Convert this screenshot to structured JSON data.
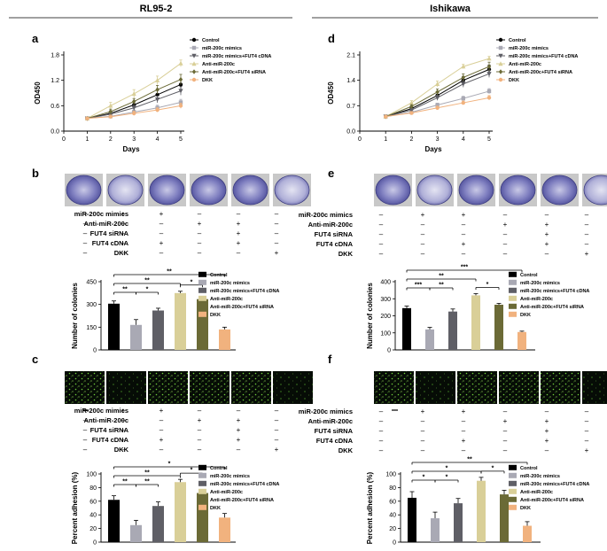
{
  "colors": {
    "Control": "#000000",
    "miR-200c mimics": "#a9a9b4",
    "miR-200c mimics+FUT4 cDNA": "#5f5f66",
    "Anti-miR-200c": "#d9cf98",
    "Anti-miR-200c+FUT4 siRNA": "#6b6a36",
    "DKK": "#f1b27e"
  },
  "treatment_labels": [
    "miR-200c mimics",
    "Anti-miR-200c",
    "FUT4 siRNA",
    "FUT4 cDNA",
    "DKK"
  ],
  "treatment_matrix": [
    [
      "–",
      "+",
      "+",
      "–",
      "–",
      "–"
    ],
    [
      "–",
      "–",
      "–",
      "+",
      "+",
      "–"
    ],
    [
      "–",
      "–",
      "–",
      "–",
      "+",
      "–"
    ],
    [
      "–",
      "–",
      "+",
      "–",
      "+",
      "–"
    ],
    [
      "–",
      "–",
      "–",
      "–",
      "–",
      "+"
    ]
  ],
  "chart_data": [
    {
      "id": "a",
      "type": "line",
      "panel_letter": "a",
      "group_title": "RL95-2",
      "column": "left",
      "xlabel": "Days",
      "ylabel": "OD450",
      "x": [
        1,
        2,
        3,
        4,
        5
      ],
      "xticks": [
        "0",
        "1",
        "2",
        "3",
        "4",
        "5"
      ],
      "xlim": [
        0,
        5
      ],
      "yticks": [
        "0.0",
        "0.6",
        "1.2",
        "1.8"
      ],
      "ylim": [
        0,
        1.8
      ],
      "series": [
        {
          "name": "Control",
          "marker": "circle",
          "values": [
            0.3,
            0.42,
            0.62,
            0.86,
            1.1
          ],
          "err": [
            0.02,
            0.06,
            0.08,
            0.1,
            0.12
          ]
        },
        {
          "name": "miR-200c mimics",
          "marker": "square",
          "values": [
            0.3,
            0.35,
            0.45,
            0.55,
            0.68
          ],
          "err": [
            0.02,
            0.04,
            0.05,
            0.06,
            0.07
          ]
        },
        {
          "name": "miR-200c mimics+FUT4 cDNA",
          "marker": "triangle-down",
          "values": [
            0.3,
            0.4,
            0.55,
            0.75,
            0.95
          ],
          "err": [
            0.02,
            0.05,
            0.06,
            0.08,
            0.1
          ]
        },
        {
          "name": "Anti-miR-200c",
          "marker": "triangle",
          "values": [
            0.3,
            0.6,
            0.88,
            1.2,
            1.6
          ],
          "err": [
            0.03,
            0.08,
            0.1,
            0.1,
            0.08
          ]
        },
        {
          "name": "Anti-miR-200c+FUT4 siRNA",
          "marker": "diamond",
          "values": [
            0.3,
            0.46,
            0.7,
            0.98,
            1.22
          ],
          "err": [
            0.02,
            0.06,
            0.07,
            0.1,
            0.12
          ]
        },
        {
          "name": "DKK",
          "marker": "circle",
          "values": [
            0.3,
            0.34,
            0.42,
            0.5,
            0.6
          ],
          "err": [
            0.02,
            0.04,
            0.05,
            0.05,
            0.06
          ]
        }
      ]
    },
    {
      "id": "d",
      "type": "line",
      "panel_letter": "d",
      "group_title": "Ishikawa",
      "column": "right",
      "xlabel": "Days",
      "ylabel": "OD450",
      "x": [
        1,
        2,
        3,
        4,
        5
      ],
      "xticks": [
        "0",
        "1",
        "2",
        "3",
        "4",
        "5"
      ],
      "xlim": [
        0,
        5
      ],
      "yticks": [
        "0.0",
        "0.7",
        "1.4",
        "2.1"
      ],
      "ylim": [
        0,
        2.1
      ],
      "series": [
        {
          "name": "Control",
          "marker": "circle",
          "values": [
            0.4,
            0.62,
            0.98,
            1.4,
            1.7
          ],
          "err": [
            0.03,
            0.05,
            0.08,
            0.1,
            0.12
          ]
        },
        {
          "name": "miR-200c mimics",
          "marker": "square",
          "values": [
            0.4,
            0.52,
            0.72,
            0.9,
            1.1
          ],
          "err": [
            0.03,
            0.04,
            0.05,
            0.06,
            0.07
          ]
        },
        {
          "name": "miR-200c mimics+FUT4 cDNA",
          "marker": "triangle-down",
          "values": [
            0.4,
            0.58,
            0.92,
            1.3,
            1.58
          ],
          "err": [
            0.03,
            0.05,
            0.07,
            0.09,
            0.1
          ]
        },
        {
          "name": "Anti-miR-200c",
          "marker": "triangle",
          "values": [
            0.4,
            0.78,
            1.3,
            1.78,
            2.0
          ],
          "err": [
            0.03,
            0.06,
            0.08,
            0.06,
            0.06
          ]
        },
        {
          "name": "Anti-miR-200c+FUT4 siRNA",
          "marker": "diamond",
          "values": [
            0.4,
            0.68,
            1.08,
            1.48,
            1.78
          ],
          "err": [
            0.03,
            0.05,
            0.08,
            0.1,
            0.12
          ]
        },
        {
          "name": "DKK",
          "marker": "circle",
          "values": [
            0.4,
            0.5,
            0.64,
            0.78,
            0.92
          ],
          "err": [
            0.03,
            0.04,
            0.05,
            0.05,
            0.06
          ]
        }
      ]
    },
    {
      "id": "b",
      "type": "bar",
      "panel_letter": "b",
      "column": "left",
      "ylabel": "Number of colonies",
      "yticks": [
        "0",
        "150",
        "300",
        "450"
      ],
      "ylim": [
        0,
        450
      ],
      "categories": [
        "Control",
        "miR-200c mimics",
        "miR-200c mimics+FUT4 cDNA",
        "Anti-miR-200c",
        "Anti-miR-200c+FUT4 siRNA",
        "DKK"
      ],
      "values": [
        305,
        165,
        260,
        375,
        335,
        135
      ],
      "err": [
        18,
        35,
        15,
        12,
        10,
        15
      ],
      "significance": [
        {
          "from": 0,
          "to": 1,
          "label": "**"
        },
        {
          "from": 1,
          "to": 2,
          "label": "*"
        },
        {
          "from": 0,
          "to": 3,
          "label": "**"
        },
        {
          "from": 3,
          "to": 4,
          "label": "*"
        },
        {
          "from": 0,
          "to": 5,
          "label": "**"
        }
      ]
    },
    {
      "id": "e",
      "type": "bar",
      "panel_letter": "e",
      "column": "right",
      "ylabel": "Number of colonies",
      "yticks": [
        "0",
        "100",
        "200",
        "300",
        "400"
      ],
      "ylim": [
        0,
        400
      ],
      "categories": [
        "Control",
        "miR-200c mimics",
        "miR-200c mimics+FUT4 cDNA",
        "Anti-miR-200c",
        "Anti-miR-200c+FUT4 siRNA",
        "DKK"
      ],
      "values": [
        245,
        120,
        225,
        320,
        265,
        105
      ],
      "err": [
        12,
        12,
        15,
        10,
        8,
        5
      ],
      "significance": [
        {
          "from": 0,
          "to": 1,
          "label": "***"
        },
        {
          "from": 1,
          "to": 2,
          "label": "**"
        },
        {
          "from": 0,
          "to": 3,
          "label": "**"
        },
        {
          "from": 3,
          "to": 4,
          "label": "*"
        },
        {
          "from": 0,
          "to": 5,
          "label": "***"
        }
      ]
    },
    {
      "id": "c",
      "type": "bar",
      "panel_letter": "c",
      "column": "left",
      "ylabel": "Percent adhesion (%)",
      "yticks": [
        "0",
        "20",
        "40",
        "60",
        "80",
        "100"
      ],
      "ylim": [
        0,
        100
      ],
      "categories": [
        "Control",
        "miR-200c mimics",
        "miR-200c mimics+FUT4 cDNA",
        "Anti-miR-200c",
        "Anti-miR-200c+FUT4 siRNA",
        "DKK"
      ],
      "values": [
        62,
        25,
        53,
        88,
        72,
        36
      ],
      "err": [
        6,
        7,
        6,
        4,
        5,
        6
      ],
      "significance": [
        {
          "from": 0,
          "to": 1,
          "label": "**"
        },
        {
          "from": 1,
          "to": 2,
          "label": "**"
        },
        {
          "from": 0,
          "to": 3,
          "label": "**"
        },
        {
          "from": 3,
          "to": 4,
          "label": "*"
        },
        {
          "from": 0,
          "to": 5,
          "label": "*"
        }
      ]
    },
    {
      "id": "f",
      "type": "bar",
      "panel_letter": "f",
      "column": "right",
      "ylabel": "Percent adhesion (%)",
      "yticks": [
        "0",
        "20",
        "40",
        "60",
        "80",
        "100"
      ],
      "ylim": [
        0,
        100
      ],
      "categories": [
        "Control",
        "miR-200c mimics",
        "miR-200c mimics+FUT4 cDNA",
        "Anti-miR-200c",
        "Anti-miR-200c+FUT4 siRNA",
        "DKK"
      ],
      "values": [
        65,
        35,
        57,
        90,
        70,
        24
      ],
      "err": [
        9,
        9,
        7,
        5,
        6,
        6
      ],
      "significance": [
        {
          "from": 0,
          "to": 1,
          "label": "*"
        },
        {
          "from": 1,
          "to": 2,
          "label": "*"
        },
        {
          "from": 0,
          "to": 3,
          "label": "*"
        },
        {
          "from": 3,
          "to": 4,
          "label": "*"
        },
        {
          "from": 0,
          "to": 5,
          "label": "**"
        }
      ]
    }
  ]
}
